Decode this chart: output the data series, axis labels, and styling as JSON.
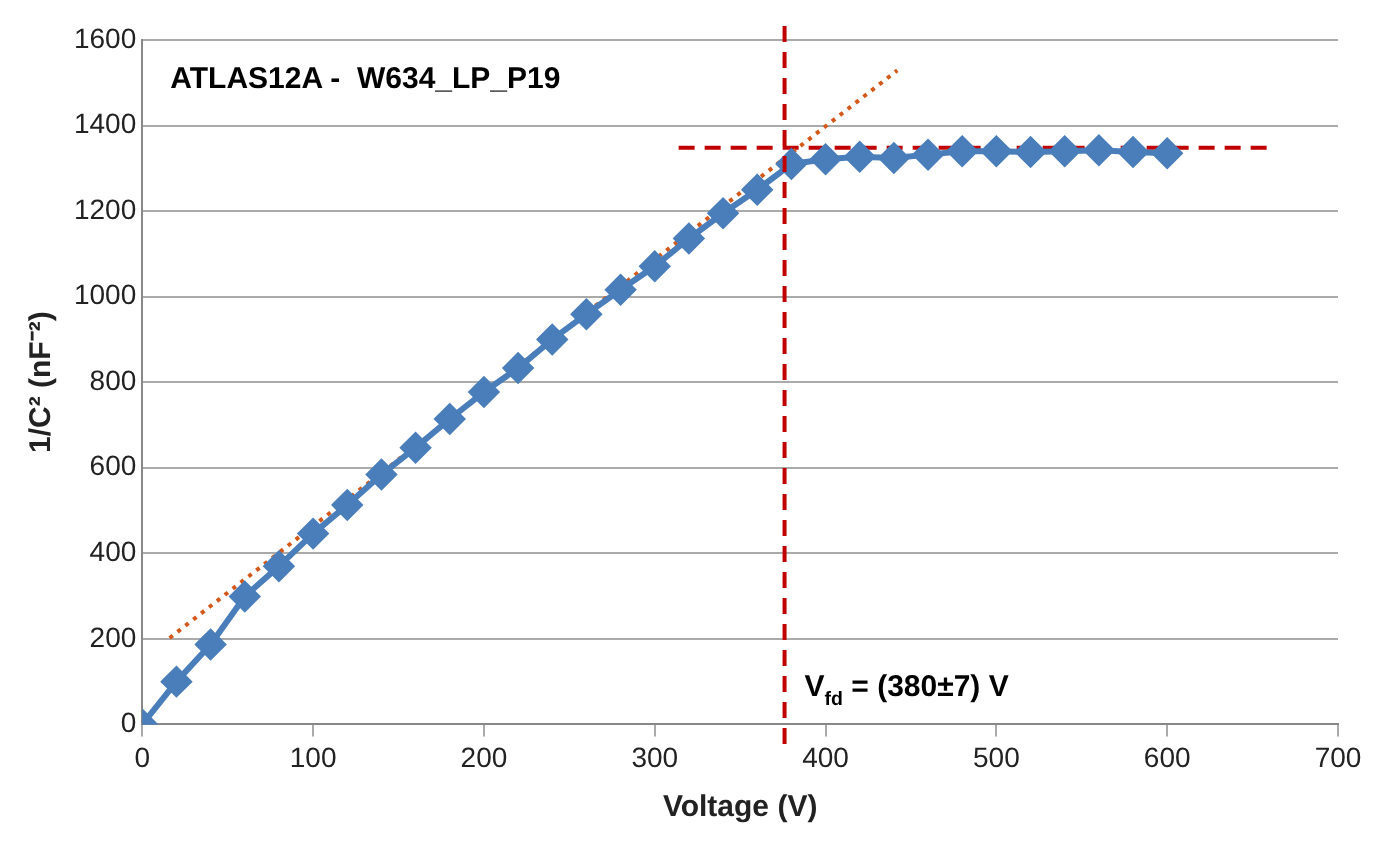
{
  "chart_data": {
    "type": "line",
    "title": "ATLAS12A -  W634_LP_P19",
    "xlabel": "Voltage (V)",
    "ylabel": "1/C² (nF⁻²)",
    "annotations": [
      "V$_{fd}$ = (380±7) V"
    ],
    "xlim": [
      0,
      700
    ],
    "xticks": [
      0,
      100,
      200,
      300,
      400,
      500,
      600,
      700
    ],
    "ylim": [
      0,
      1600
    ],
    "yticks": [
      0,
      200,
      400,
      600,
      800,
      1000,
      1200,
      1400,
      1600
    ],
    "grid": "y",
    "legend": false,
    "marker": "diamond",
    "series": [
      {
        "color": "#4a7ebb",
        "x": [
          0,
          20,
          40,
          60,
          80,
          100,
          120,
          140,
          160,
          180,
          200,
          220,
          240,
          260,
          280,
          300,
          320,
          340,
          360,
          380,
          400,
          420,
          440,
          460,
          480,
          500,
          520,
          540,
          560,
          580,
          600
        ],
        "values": [
          0,
          100,
          187,
          299,
          370,
          446,
          513,
          584,
          647,
          714,
          777,
          833,
          900,
          959,
          1016,
          1071,
          1136,
          1195,
          1250,
          1310,
          1321,
          1327,
          1324,
          1332,
          1340,
          1340,
          1338,
          1340,
          1342,
          1338,
          1335
        ]
      },
      {
        "color": "#d4581a",
        "marker": "none",
        "line_style": "dotted",
        "x": [
          16,
          442
        ],
        "values": [
          202,
          1529
        ]
      },
      {
        "color": "#c00000",
        "marker": "none",
        "line_style": "dashed",
        "x": [
          314,
          660
        ],
        "values": [
          1348,
          1348
        ]
      }
    ],
    "ref_lines": [
      {
        "axis": "x",
        "value": 376,
        "color": "#c00000",
        "line_style": "dashed"
      }
    ]
  }
}
